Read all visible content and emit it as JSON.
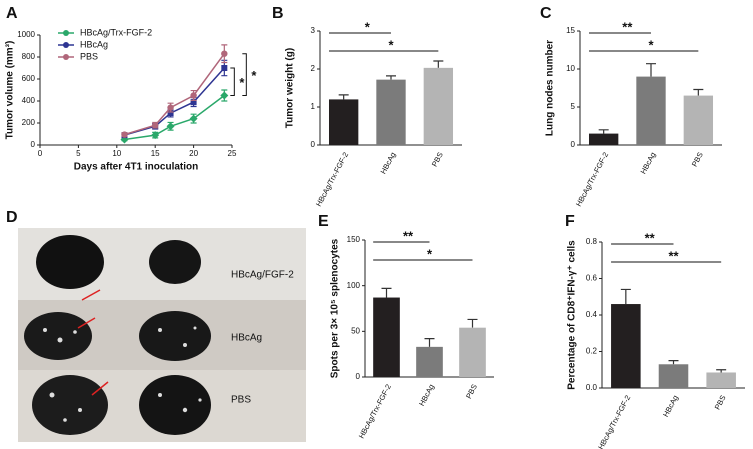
{
  "chart_data": [
    {
      "panel_label": "A",
      "type": "line",
      "y_label": "Tumor volume (mm³)",
      "x_label": "Days after 4T1 inoculation",
      "xlim": [
        0,
        25
      ],
      "xticks": [
        0,
        5,
        10,
        15,
        20,
        25
      ],
      "ylim": [
        0,
        1000
      ],
      "yticks": [
        0,
        200,
        400,
        600,
        800,
        1000
      ],
      "x": [
        11,
        15,
        17,
        20,
        24
      ],
      "legend": "upper left",
      "series": [
        {
          "name": "HBcAg/Trx-FGF-2",
          "color": "#2aa86a",
          "values": [
            50,
            90,
            170,
            240,
            450
          ],
          "errors": [
            10,
            25,
            35,
            40,
            50
          ]
        },
        {
          "name": "HBcAg",
          "color": "#2e3592",
          "values": [
            90,
            170,
            290,
            390,
            700
          ],
          "errors": [
            15,
            25,
            35,
            40,
            70
          ]
        },
        {
          "name": "PBS",
          "color": "#b0667a",
          "values": [
            95,
            180,
            340,
            450,
            830
          ],
          "errors": [
            15,
            25,
            40,
            45,
            80
          ]
        }
      ],
      "comparisons": [
        {
          "from": 0,
          "to": 1,
          "label": "*"
        },
        {
          "from": 0,
          "to": 2,
          "label": "*"
        }
      ]
    },
    {
      "panel_label": "B",
      "type": "bar",
      "y_label": "Tumor weight (g)",
      "ylim": [
        0,
        3
      ],
      "yticks": [
        0,
        1,
        2,
        3
      ],
      "categories": [
        "HBcAg/Trx-FGF-2",
        "HBcAg",
        "PBS"
      ],
      "values": [
        1.2,
        1.72,
        2.03
      ],
      "errors": [
        0.12,
        0.1,
        0.18
      ],
      "colors": [
        "#231f20",
        "#7b7b7b",
        "#b4b4b4"
      ],
      "comparisons": [
        {
          "from": 0,
          "to": 1,
          "label": "*"
        },
        {
          "from": 0,
          "to": 2,
          "label": "*"
        }
      ]
    },
    {
      "panel_label": "C",
      "type": "bar",
      "y_label": "Lung nodes number",
      "ylim": [
        0,
        15
      ],
      "yticks": [
        0,
        5,
        10,
        15
      ],
      "categories": [
        "HBcAg/Trx-FGF-2",
        "HBcAg",
        "PBS"
      ],
      "values": [
        1.5,
        9.0,
        6.5
      ],
      "errors": [
        0.5,
        1.7,
        0.8
      ],
      "colors": [
        "#231f20",
        "#7b7b7b",
        "#b4b4b4"
      ],
      "comparisons": [
        {
          "from": 0,
          "to": 1,
          "label": "**"
        },
        {
          "from": 0,
          "to": 2,
          "label": "*"
        }
      ]
    },
    {
      "panel_label": "D",
      "type": "image",
      "labels": [
        "HBcAg/FGF-2",
        "HBcAg",
        "PBS"
      ]
    },
    {
      "panel_label": "E",
      "type": "bar",
      "y_label": "Spots per 3× 10⁵ splenocytes",
      "ylim": [
        0,
        150
      ],
      "yticks": [
        0,
        50,
        100,
        150
      ],
      "categories": [
        "HBcAg/Trx-FGF-2",
        "HBcAg",
        "PBS"
      ],
      "values": [
        87,
        33,
        54
      ],
      "errors": [
        10,
        9,
        9
      ],
      "colors": [
        "#231f20",
        "#7b7b7b",
        "#b4b4b4"
      ],
      "comparisons": [
        {
          "from": 0,
          "to": 1,
          "label": "**"
        },
        {
          "from": 0,
          "to": 2,
          "label": "*"
        }
      ]
    },
    {
      "panel_label": "F",
      "type": "bar",
      "y_label": "Percentage of CD8⁺IFN-γ⁺ cells",
      "ylim": [
        0,
        0.8
      ],
      "yticks": [
        {
          "value": 0,
          "label": "0.0"
        },
        0.2,
        0.4,
        0.6,
        0.8
      ],
      "categories": [
        "HBcAg/Trx-FGF-2",
        "HBcAg",
        "PBS"
      ],
      "values": [
        0.46,
        0.13,
        0.085
      ],
      "errors": [
        0.08,
        0.02,
        0.015
      ],
      "colors": [
        "#231f20",
        "#7b7b7b",
        "#b4b4b4"
      ],
      "comparisons": [
        {
          "from": 0,
          "to": 1,
          "label": "**"
        },
        {
          "from": 0,
          "to": 2,
          "label": "**"
        }
      ]
    }
  ]
}
